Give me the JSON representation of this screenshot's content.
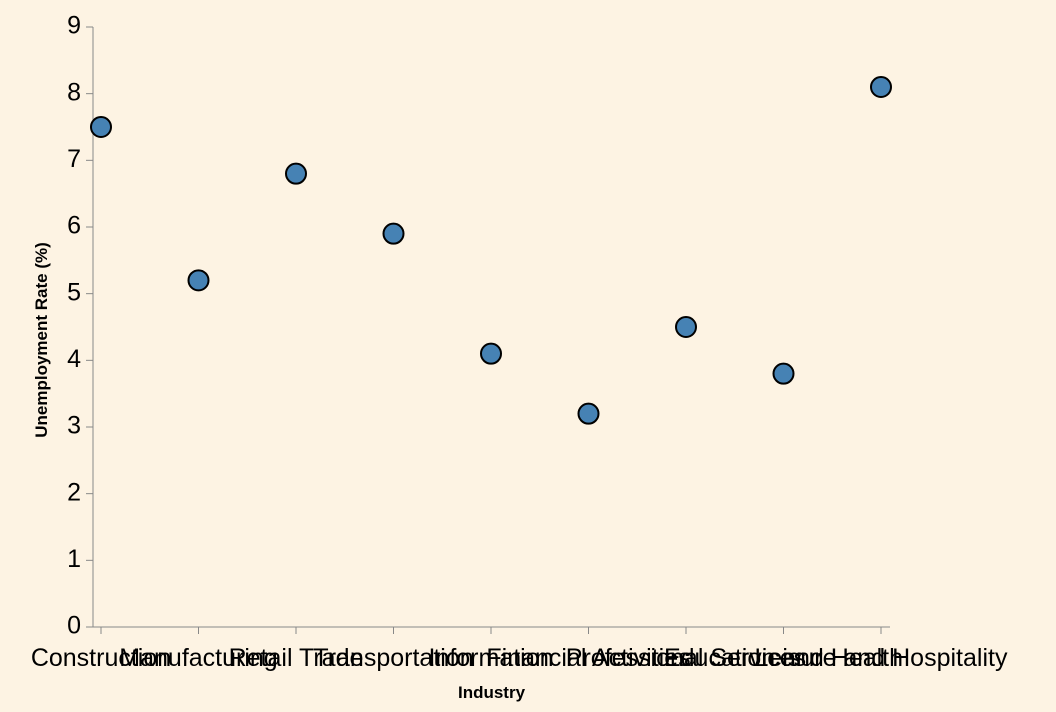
{
  "chart_data": {
    "type": "scatter",
    "xlabel": "Industry",
    "ylabel": "Unemployment Rate (%)",
    "categories": [
      "Construction",
      "Manufacturing",
      "Retail Trade",
      "Transportation",
      "Information",
      "Financial Activities",
      "Professional Services",
      "Education and Health",
      "Leisure and Hospitality"
    ],
    "series": [
      {
        "values": [
          7.5,
          5.2,
          6.8,
          5.9,
          4.1,
          3.2,
          4.5,
          3.8,
          8.1
        ]
      }
    ],
    "ylim": [
      0,
      9
    ],
    "yticks": [
      0,
      1,
      2,
      3,
      4,
      5,
      6,
      7,
      8,
      9
    ],
    "grid": false,
    "colors": {
      "point_fill": "#4682b4",
      "point_stroke": "#000000",
      "background": "#fdf3e3",
      "axis": "#888888"
    }
  }
}
